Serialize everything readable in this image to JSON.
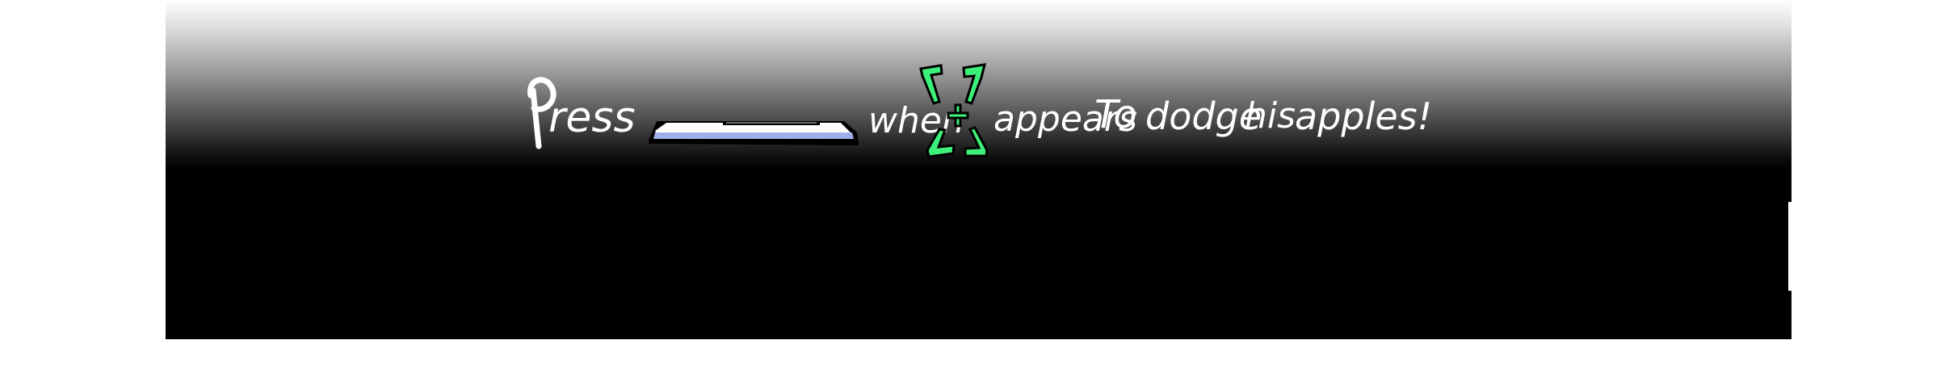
{
  "prompt": {
    "word_press": "Press",
    "word_when": "when",
    "word_appears": "appears",
    "word_to": "To",
    "word_dodge": "dodge",
    "word_his": "his",
    "word_apples": "apples!"
  },
  "icons": {
    "key": "spacebar-key-icon",
    "reticle": "target-reticle-icon"
  },
  "colors": {
    "background_top": "#ffffff",
    "background_bottom": "#000000",
    "text": "#ffffff",
    "key_top": "#ffffff",
    "key_face": "#9fb0ea",
    "key_outline": "#000000",
    "reticle_green": "#3cf07a"
  }
}
